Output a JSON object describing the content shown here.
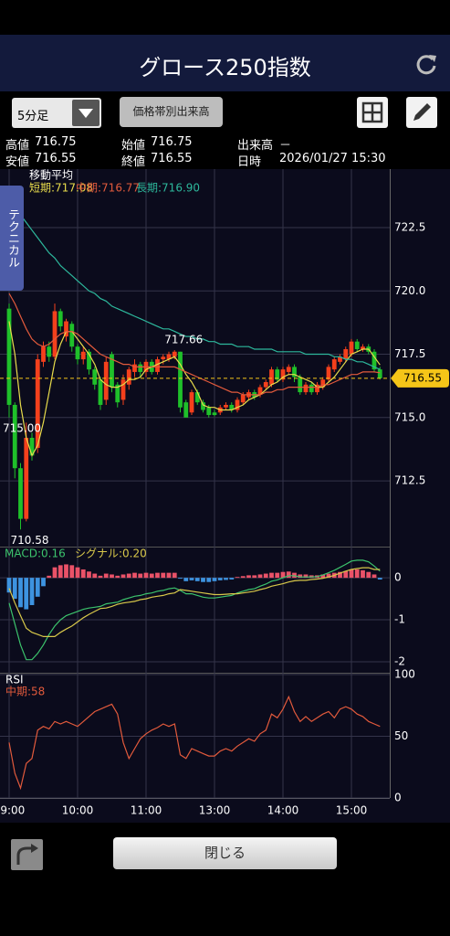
{
  "header": {
    "title": "グロース250指数"
  },
  "toolbar": {
    "interval": "5分足",
    "volume_profile": "価格帯別出来高"
  },
  "info": [
    [
      "高値",
      "716.75"
    ],
    [
      "始値",
      "716.75"
    ],
    [
      "出来高",
      "－"
    ],
    [
      "安値",
      "716.55"
    ],
    [
      "終値",
      "716.55"
    ],
    [
      "日時",
      "2026/01/27 15:30"
    ]
  ],
  "side_tab": "テクニカル",
  "footer": {
    "close": "閉じる"
  },
  "chart_data": [
    {
      "type": "candlestick",
      "legend_title": "移動平均",
      "colors": {
        "up": "#f4401c",
        "down": "#1fc02a"
      },
      "grid": true,
      "ylim": [
        709.94,
        724.81
      ],
      "yticks": [
        722.5,
        {
          "value": 720,
          "label": "720.0"
        },
        717.5,
        {
          "value": 715,
          "label": "715.0"
        },
        712.5
      ],
      "open": [
        719.3,
        715.5,
        713.0,
        711.0,
        714.2,
        713.8,
        717.2,
        717.8,
        717.4,
        719.2,
        718.2,
        718.7,
        717.8,
        717.3,
        717.6,
        716.9,
        716.5,
        715.7,
        717.5,
        716.3,
        715.7,
        716.3,
        716.8,
        717.1,
        716.8,
        717.2,
        716.8,
        717.3,
        717.3,
        717.4,
        717.6,
        715.6,
        715.2,
        716.0,
        715.6,
        715.4,
        715.2,
        715.2,
        715.4,
        715.5,
        715.3,
        715.6,
        715.8,
        716.0,
        715.9,
        716.2,
        716.3,
        716.9,
        716.5,
        716.8,
        717.0,
        716.6,
        716.0,
        716.3,
        716.0,
        716.2,
        716.5,
        716.9,
        717.2,
        717.3,
        717.5,
        718.0,
        717.7,
        717.8,
        717.6,
        716.9
      ],
      "high": [
        719.5,
        715.6,
        713.2,
        714.8,
        714.4,
        717.5,
        718.0,
        718.0,
        719.5,
        719.3,
        718.9,
        718.8,
        717.9,
        717.8,
        717.7,
        717.0,
        716.6,
        717.4,
        717.6,
        716.4,
        716.7,
        717.0,
        717.3,
        717.2,
        717.3,
        717.3,
        717.4,
        717.5,
        717.6,
        717.66,
        717.6,
        715.7,
        716.1,
        716.1,
        715.7,
        715.5,
        715.3,
        715.5,
        715.6,
        715.6,
        715.8,
        716.0,
        716.1,
        716.1,
        716.3,
        716.5,
        717.0,
        717.0,
        717.0,
        717.1,
        717.1,
        716.7,
        716.4,
        716.4,
        716.4,
        716.6,
        717.1,
        717.4,
        717.5,
        717.8,
        718.1,
        718.1,
        717.9,
        717.9,
        717.7,
        717.0
      ],
      "low": [
        715.0,
        712.6,
        710.58,
        710.9,
        713.3,
        713.6,
        717.0,
        717.2,
        717.3,
        718.4,
        718.0,
        717.6,
        717.1,
        717.1,
        716.7,
        716.1,
        715.3,
        715.5,
        716.0,
        715.4,
        715.5,
        716.1,
        716.6,
        716.6,
        716.6,
        716.7,
        716.7,
        717.1,
        717.2,
        717.3,
        715.2,
        715.1,
        715.1,
        715.5,
        715.2,
        715.0,
        715.05,
        715.1,
        715.3,
        715.2,
        715.2,
        715.5,
        715.7,
        715.7,
        715.8,
        716.1,
        716.2,
        716.4,
        716.4,
        716.7,
        716.4,
        715.9,
        715.9,
        715.9,
        715.9,
        716.1,
        716.4,
        716.8,
        717.1,
        717.2,
        717.4,
        717.6,
        717.6,
        717.5,
        716.8,
        716.5
      ],
      "close": [
        715.5,
        713.0,
        711.0,
        714.2,
        713.5,
        717.3,
        717.8,
        717.4,
        719.2,
        718.6,
        718.8,
        717.8,
        717.3,
        717.6,
        716.9,
        716.3,
        715.5,
        717.2,
        716.2,
        715.6,
        716.5,
        716.9,
        717.1,
        716.8,
        717.2,
        716.8,
        717.3,
        717.4,
        717.5,
        717.6,
        715.4,
        715.0,
        716.0,
        715.6,
        715.3,
        715.1,
        715.1,
        715.4,
        715.5,
        715.3,
        715.7,
        715.9,
        716.0,
        715.8,
        716.2,
        716.4,
        716.9,
        716.5,
        716.9,
        717.0,
        716.6,
        716.0,
        716.3,
        716.0,
        716.3,
        716.5,
        717.0,
        717.3,
        717.4,
        717.7,
        718.0,
        717.7,
        717.8,
        717.6,
        716.9,
        716.55
      ],
      "series": [
        {
          "name": "短期:717.08",
          "color": "#e8dc4c",
          "values": [
            718.8,
            717.5,
            715.5,
            714.2,
            713.5,
            713.9,
            714.8,
            716.0,
            717.2,
            717.9,
            718.4,
            718.4,
            718.1,
            717.8,
            717.5,
            717.1,
            716.5,
            716.3,
            716.2,
            716.2,
            716.3,
            716.5,
            716.5,
            716.6,
            716.9,
            717.0,
            717.1,
            717.2,
            717.3,
            717.4,
            717.1,
            716.7,
            716.4,
            716.0,
            715.5,
            715.4,
            715.4,
            715.3,
            715.3,
            715.3,
            715.4,
            715.5,
            715.7,
            715.8,
            715.9,
            716.1,
            716.3,
            716.4,
            716.6,
            716.7,
            716.7,
            716.6,
            716.5,
            716.4,
            716.2,
            716.2,
            716.4,
            716.6,
            716.9,
            717.2,
            717.5,
            717.6,
            717.7,
            717.7,
            717.4,
            717.08
          ]
        },
        {
          "name": "中期:716.77",
          "color": "#e25a3c",
          "values": [
            719.9,
            719.5,
            719.0,
            718.5,
            718.1,
            717.9,
            717.8,
            717.9,
            718.1,
            718.3,
            718.4,
            718.4,
            718.3,
            718.1,
            717.9,
            717.7,
            717.5,
            717.4,
            717.3,
            717.2,
            717.1,
            717.1,
            717.0,
            717.0,
            717.0,
            717.0,
            717.0,
            717.0,
            717.0,
            717.0,
            716.9,
            716.8,
            716.7,
            716.6,
            716.5,
            716.4,
            716.3,
            716.2,
            716.1,
            716.0,
            716.0,
            715.9,
            715.9,
            715.9,
            715.9,
            716.0,
            716.0,
            716.1,
            716.1,
            716.2,
            716.2,
            716.2,
            716.2,
            716.2,
            716.2,
            716.3,
            716.3,
            716.4,
            716.5,
            716.6,
            716.7,
            716.7,
            716.8,
            716.8,
            716.8,
            716.77
          ]
        },
        {
          "name": "長期:716.90",
          "color": "#2db89c",
          "values": [
            723.6,
            723.3,
            723.0,
            722.7,
            722.4,
            722.1,
            721.8,
            721.5,
            721.3,
            721.0,
            720.8,
            720.6,
            720.4,
            720.2,
            720.0,
            719.9,
            719.7,
            719.6,
            719.4,
            719.3,
            719.2,
            719.1,
            719.0,
            718.9,
            718.8,
            718.7,
            718.6,
            718.5,
            718.5,
            718.4,
            718.3,
            718.2,
            718.2,
            718.1,
            718.1,
            718.0,
            718.0,
            717.9,
            717.9,
            717.9,
            717.8,
            717.8,
            717.8,
            717.7,
            717.7,
            717.7,
            717.7,
            717.6,
            717.6,
            717.6,
            717.6,
            717.6,
            717.5,
            717.5,
            717.5,
            717.5,
            717.5,
            717.4,
            717.4,
            717.3,
            717.3,
            717.2,
            717.2,
            717.1,
            717.0,
            716.9
          ]
        }
      ],
      "annotations": [
        {
          "value": 717.66,
          "label": "717.66",
          "at": "high"
        },
        {
          "value": 715,
          "label": "715.00",
          "at": "low"
        },
        {
          "value": 710.58,
          "label": "710.58",
          "at": "low"
        }
      ],
      "last_price_color": "#f5c518"
    },
    {
      "type": "macd",
      "grid": true,
      "ylim": [
        -2.24,
        0.7
      ],
      "yticks": [
        0,
        -1,
        -2
      ],
      "histogram": {
        "up_color": "#ea5268",
        "down_color": "#3d93e0",
        "values": [
          -0.35,
          -0.5,
          -0.7,
          -0.75,
          -0.65,
          -0.45,
          -0.2,
          0.05,
          0.25,
          0.3,
          0.32,
          0.3,
          0.25,
          0.2,
          0.15,
          0.1,
          0.05,
          0.1,
          0.08,
          0.05,
          0.08,
          0.1,
          0.12,
          0.1,
          0.12,
          0.1,
          0.12,
          0.12,
          0.12,
          0.12,
          -0.02,
          -0.08,
          -0.06,
          -0.08,
          -0.1,
          -0.1,
          -0.08,
          -0.06,
          -0.05,
          -0.04,
          0.02,
          0.04,
          0.06,
          0.06,
          0.08,
          0.1,
          0.12,
          0.12,
          0.14,
          0.15,
          0.12,
          0.08,
          0.08,
          0.06,
          0.06,
          0.08,
          0.1,
          0.12,
          0.14,
          0.16,
          0.2,
          0.2,
          0.18,
          0.14,
          0.08,
          -0.04
        ]
      },
      "series": [
        {
          "name": "MACD:0.16",
          "color": "#3cc36c",
          "values": [
            -0.6,
            -1.1,
            -1.6,
            -1.95,
            -1.95,
            -1.8,
            -1.6,
            -1.35,
            -1.15,
            -1.0,
            -0.9,
            -0.85,
            -0.8,
            -0.75,
            -0.72,
            -0.7,
            -0.68,
            -0.62,
            -0.6,
            -0.58,
            -0.52,
            -0.48,
            -0.44,
            -0.42,
            -0.38,
            -0.36,
            -0.32,
            -0.3,
            -0.26,
            -0.24,
            -0.3,
            -0.38,
            -0.38,
            -0.42,
            -0.46,
            -0.48,
            -0.48,
            -0.46,
            -0.44,
            -0.42,
            -0.36,
            -0.32,
            -0.28,
            -0.26,
            -0.2,
            -0.15,
            -0.08,
            -0.05,
            0.0,
            0.05,
            0.05,
            0.02,
            0.02,
            0.02,
            0.03,
            0.07,
            0.12,
            0.18,
            0.25,
            0.32,
            0.4,
            0.42,
            0.42,
            0.38,
            0.28,
            0.16
          ]
        },
        {
          "name": "シグナル:0.20",
          "color": "#d8c84a",
          "values": [
            -0.25,
            -0.6,
            -0.9,
            -1.2,
            -1.3,
            -1.35,
            -1.4,
            -1.4,
            -1.4,
            -1.3,
            -1.22,
            -1.15,
            -1.05,
            -0.95,
            -0.87,
            -0.8,
            -0.73,
            -0.72,
            -0.68,
            -0.63,
            -0.6,
            -0.58,
            -0.56,
            -0.52,
            -0.5,
            -0.46,
            -0.44,
            -0.42,
            -0.38,
            -0.36,
            -0.28,
            -0.3,
            -0.32,
            -0.34,
            -0.36,
            -0.38,
            -0.4,
            -0.4,
            -0.39,
            -0.38,
            -0.38,
            -0.36,
            -0.34,
            -0.32,
            -0.28,
            -0.25,
            -0.2,
            -0.17,
            -0.14,
            -0.1,
            -0.07,
            -0.06,
            -0.06,
            -0.04,
            -0.03,
            -0.01,
            0.02,
            0.06,
            0.11,
            0.16,
            0.2,
            0.22,
            0.24,
            0.24,
            0.2,
            0.2
          ]
        }
      ]
    },
    {
      "type": "line",
      "title": "RSI",
      "grid": true,
      "ylim": [
        0,
        100
      ],
      "yticks": [
        100,
        50,
        0
      ],
      "categories": [
        "09:00",
        null,
        null,
        null,
        null,
        null,
        null,
        null,
        null,
        null,
        null,
        null,
        "10:00",
        null,
        null,
        null,
        null,
        null,
        null,
        null,
        null,
        null,
        null,
        null,
        "11:00",
        null,
        null,
        null,
        null,
        null,
        null,
        null,
        null,
        null,
        null,
        null,
        "13:00",
        null,
        null,
        null,
        null,
        null,
        null,
        null,
        null,
        null,
        null,
        null,
        "14:00",
        null,
        null,
        null,
        null,
        null,
        null,
        null,
        null,
        null,
        null,
        null,
        "15:00",
        null,
        null,
        null,
        null,
        null
      ],
      "series": [
        {
          "name": "中期:58",
          "color": "#e25a3c",
          "values": [
            45,
            20,
            8,
            28,
            32,
            55,
            58,
            56,
            62,
            60,
            62,
            60,
            58,
            62,
            66,
            70,
            72,
            74,
            76,
            68,
            45,
            32,
            40,
            48,
            52,
            55,
            57,
            60,
            58,
            60,
            35,
            32,
            40,
            38,
            36,
            34,
            34,
            38,
            40,
            38,
            42,
            45,
            48,
            46,
            52,
            55,
            68,
            65,
            72,
            82,
            70,
            62,
            66,
            62,
            65,
            68,
            70,
            65,
            72,
            74,
            72,
            68,
            66,
            62,
            60,
            58
          ]
        }
      ]
    }
  ]
}
